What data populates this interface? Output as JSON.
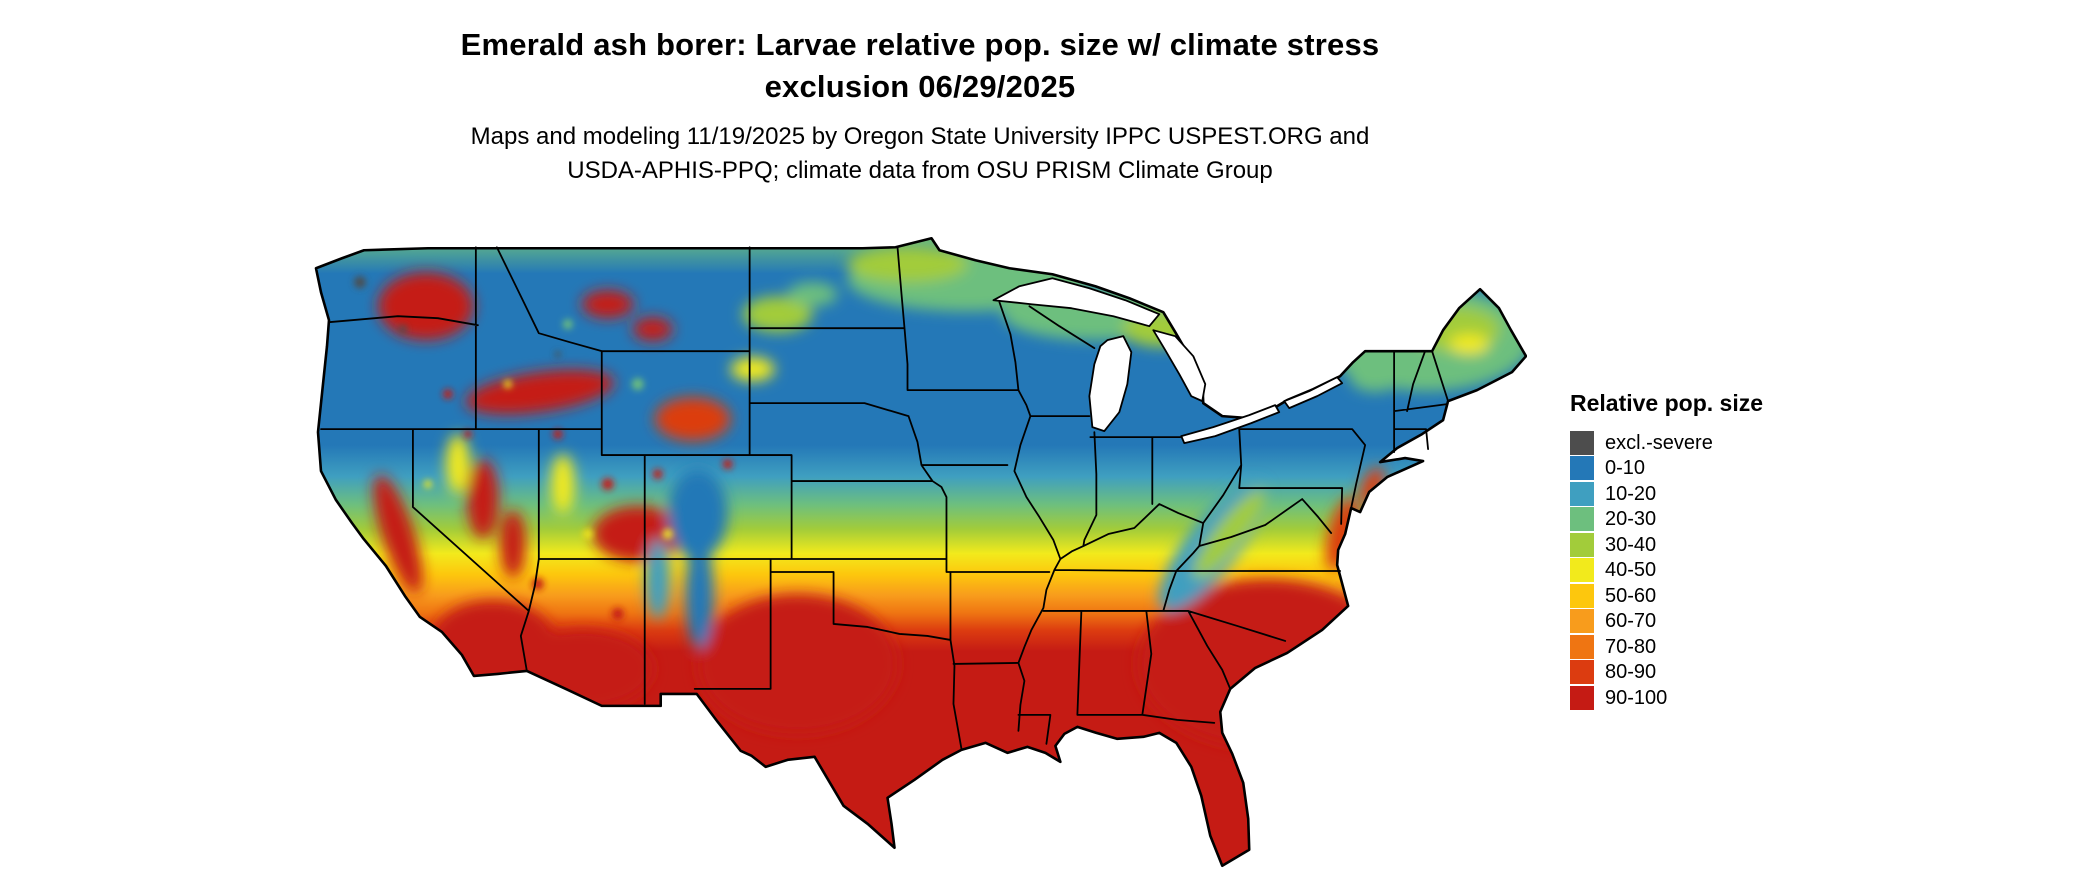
{
  "title": {
    "line1": "Emerald ash borer: Larvae relative pop. size w/ climate stress",
    "line2": "exclusion 06/29/2025"
  },
  "subtitle": {
    "line1": "Maps and modeling 11/19/2025 by Oregon State University IPPC USPEST.ORG and",
    "line2": "USDA-APHIS-PPQ; climate data from OSU PRISM Climate Group"
  },
  "map": {
    "region_label": "Continental United States",
    "border_color": "#000000",
    "water_color": "#ffffff"
  },
  "palette": {
    "severe": "#4d4d4d",
    "blue": "#2478b7",
    "teal": "#3f9fc0",
    "green": "#6dbf7e",
    "yellow_green": "#a2cc3a",
    "yellow": "#f2ea1c",
    "gold": "#fdc70d",
    "orange": "#f89c1c",
    "dark_orange": "#ef7512",
    "red_orange": "#dc3c10",
    "red": "#c51b14"
  },
  "legend": {
    "title": "Relative pop. size",
    "items": [
      {
        "label": "excl.-severe",
        "color": "#4d4d4d"
      },
      {
        "label": "0-10",
        "color": "#2478b7"
      },
      {
        "label": "10-20",
        "color": "#3f9fc0"
      },
      {
        "label": "20-30",
        "color": "#6dbf7e"
      },
      {
        "label": "30-40",
        "color": "#a2cc3a"
      },
      {
        "label": "40-50",
        "color": "#f2ea1c"
      },
      {
        "label": "50-60",
        "color": "#fdc70d"
      },
      {
        "label": "60-70",
        "color": "#f89c1c"
      },
      {
        "label": "70-80",
        "color": "#ef7512"
      },
      {
        "label": "80-90",
        "color": "#dc3c10"
      },
      {
        "label": "90-100",
        "color": "#c51b14"
      }
    ]
  },
  "chart_data": {
    "type": "heatmap",
    "title": "Emerald ash borer: Larvae relative pop. size w/ climate stress exclusion 06/29/2025",
    "legend_title": "Relative pop. size",
    "legend_position": "right",
    "categories": [
      "excl.-severe",
      "0-10",
      "10-20",
      "20-30",
      "30-40",
      "40-50",
      "50-60",
      "60-70",
      "70-80",
      "80-90",
      "90-100"
    ],
    "colors": [
      "#4d4d4d",
      "#2478b7",
      "#3f9fc0",
      "#6dbf7e",
      "#a2cc3a",
      "#f2ea1c",
      "#fdc70d",
      "#f89c1c",
      "#ef7512",
      "#dc3c10",
      "#c51b14"
    ],
    "regional_pattern": [
      {
        "region": "Southern US: Texas, Gulf Coast, Southeast, Florida, southern plains",
        "value": "90-100"
      },
      {
        "region": "Transition band: southern Kansas, Missouri, Kentucky, Virginia, mid-Atlantic coast",
        "value": "40-80"
      },
      {
        "region": "Upper Midwest, Great Lakes, northern plains, Northeast interior",
        "value": "0-10"
      },
      {
        "region": "Far northern border: Minnesota, Wisconsin, upper Michigan, northern New England",
        "value": "20-50"
      },
      {
        "region": "Mountain West and Desert Southwest",
        "value": "mixed 0-100: red basins/valleys, blue-green mountains"
      },
      {
        "region": "Pacific Northwest high peaks",
        "value": "excl.-severe"
      }
    ]
  }
}
